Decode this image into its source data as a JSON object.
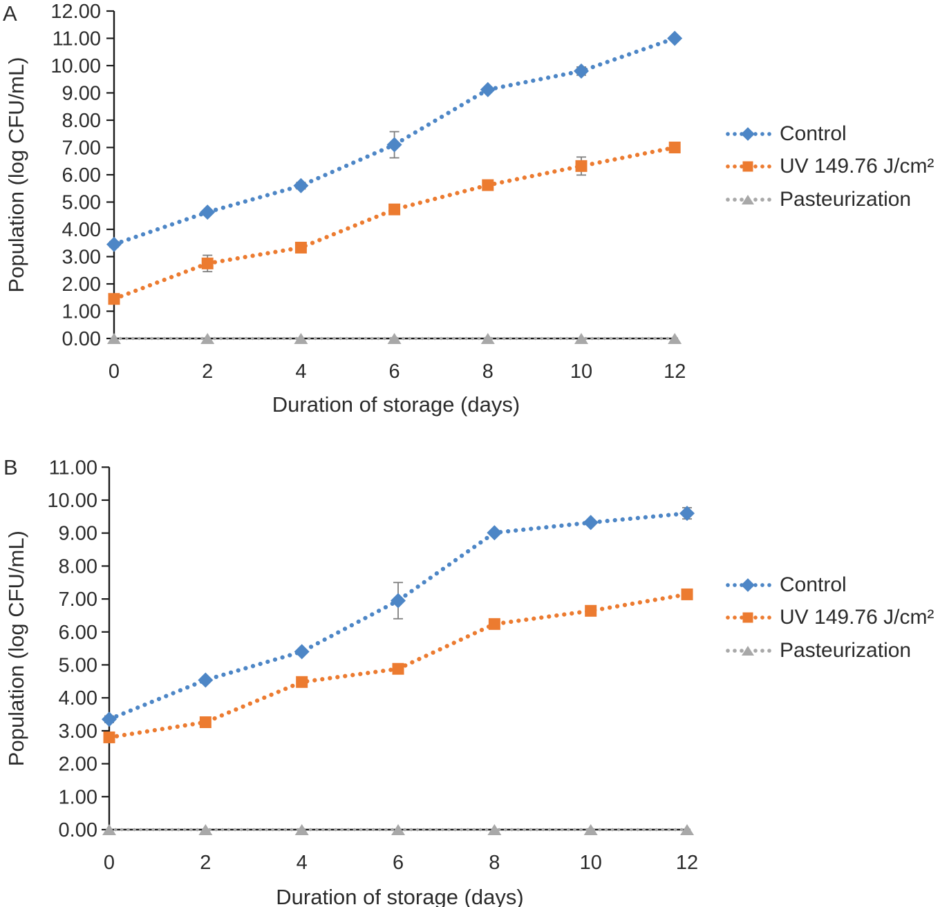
{
  "figure": {
    "description": "Two-panel line chart of microbial population during storage",
    "text_color": "#2b2b2b",
    "axis_color": "#1a1a1a",
    "error_bar_color": "#7f7f7f",
    "background": "#ffffff"
  },
  "chart_data": [
    {
      "panel": "A",
      "type": "line",
      "title": "",
      "xlabel": "Duration of storage (days)",
      "ylabel": "Population (log CFU/mL)",
      "x": [
        0,
        2,
        4,
        6,
        8,
        10,
        12
      ],
      "xlim": [
        0,
        12
      ],
      "ylim": [
        0,
        12
      ],
      "ytick_step": 1,
      "ytick_format_decimals": 2,
      "grid": false,
      "legend_position": "right",
      "line_style": "dotted",
      "series": [
        {
          "name": "Control",
          "marker": "diamond",
          "color": "#4D86C6",
          "values": [
            3.45,
            4.63,
            5.6,
            7.1,
            9.12,
            9.8,
            11.0
          ],
          "error": [
            0.1,
            0.0,
            0.12,
            0.48,
            0.0,
            0.15,
            0.0
          ]
        },
        {
          "name": "UV 149.76 J/cm²",
          "marker": "square",
          "color": "#EC7B30",
          "values": [
            1.45,
            2.75,
            3.33,
            4.73,
            5.62,
            6.32,
            7.0
          ],
          "error": [
            0.0,
            0.3,
            0.0,
            0.0,
            0.0,
            0.33,
            0.0
          ]
        },
        {
          "name": "Pasteurization",
          "marker": "triangle",
          "color": "#A8A8A8",
          "values": [
            0,
            0,
            0,
            0,
            0,
            0,
            0
          ],
          "error": [
            0,
            0,
            0,
            0,
            0,
            0,
            0
          ]
        }
      ]
    },
    {
      "panel": "B",
      "type": "line",
      "title": "",
      "xlabel": "Duration of storage (days)",
      "ylabel": "Population (log CFU/mL)",
      "x": [
        0,
        2,
        4,
        6,
        8,
        10,
        12
      ],
      "xlim": [
        0,
        12
      ],
      "ylim": [
        0,
        11
      ],
      "ytick_step": 1,
      "ytick_format_decimals": 2,
      "grid": false,
      "legend_position": "right",
      "line_style": "dotted",
      "series": [
        {
          "name": "Control",
          "marker": "diamond",
          "color": "#4D86C6",
          "values": [
            3.35,
            4.54,
            5.4,
            6.95,
            9.01,
            9.32,
            9.6
          ],
          "error": [
            0.1,
            0.0,
            0.0,
            0.55,
            0.0,
            0.0,
            0.17
          ]
        },
        {
          "name": "UV 149.76 J/cm²",
          "marker": "square",
          "color": "#EC7B30",
          "values": [
            2.8,
            3.26,
            4.48,
            4.88,
            6.24,
            6.64,
            7.14
          ],
          "error": [
            0.0,
            0.15,
            0.0,
            0.0,
            0.0,
            0.0,
            0.0
          ]
        },
        {
          "name": "Pasteurization",
          "marker": "triangle",
          "color": "#A8A8A8",
          "values": [
            0,
            0,
            0,
            0,
            0,
            0,
            0
          ],
          "error": [
            0,
            0,
            0,
            0,
            0,
            0,
            0
          ]
        }
      ]
    }
  ]
}
